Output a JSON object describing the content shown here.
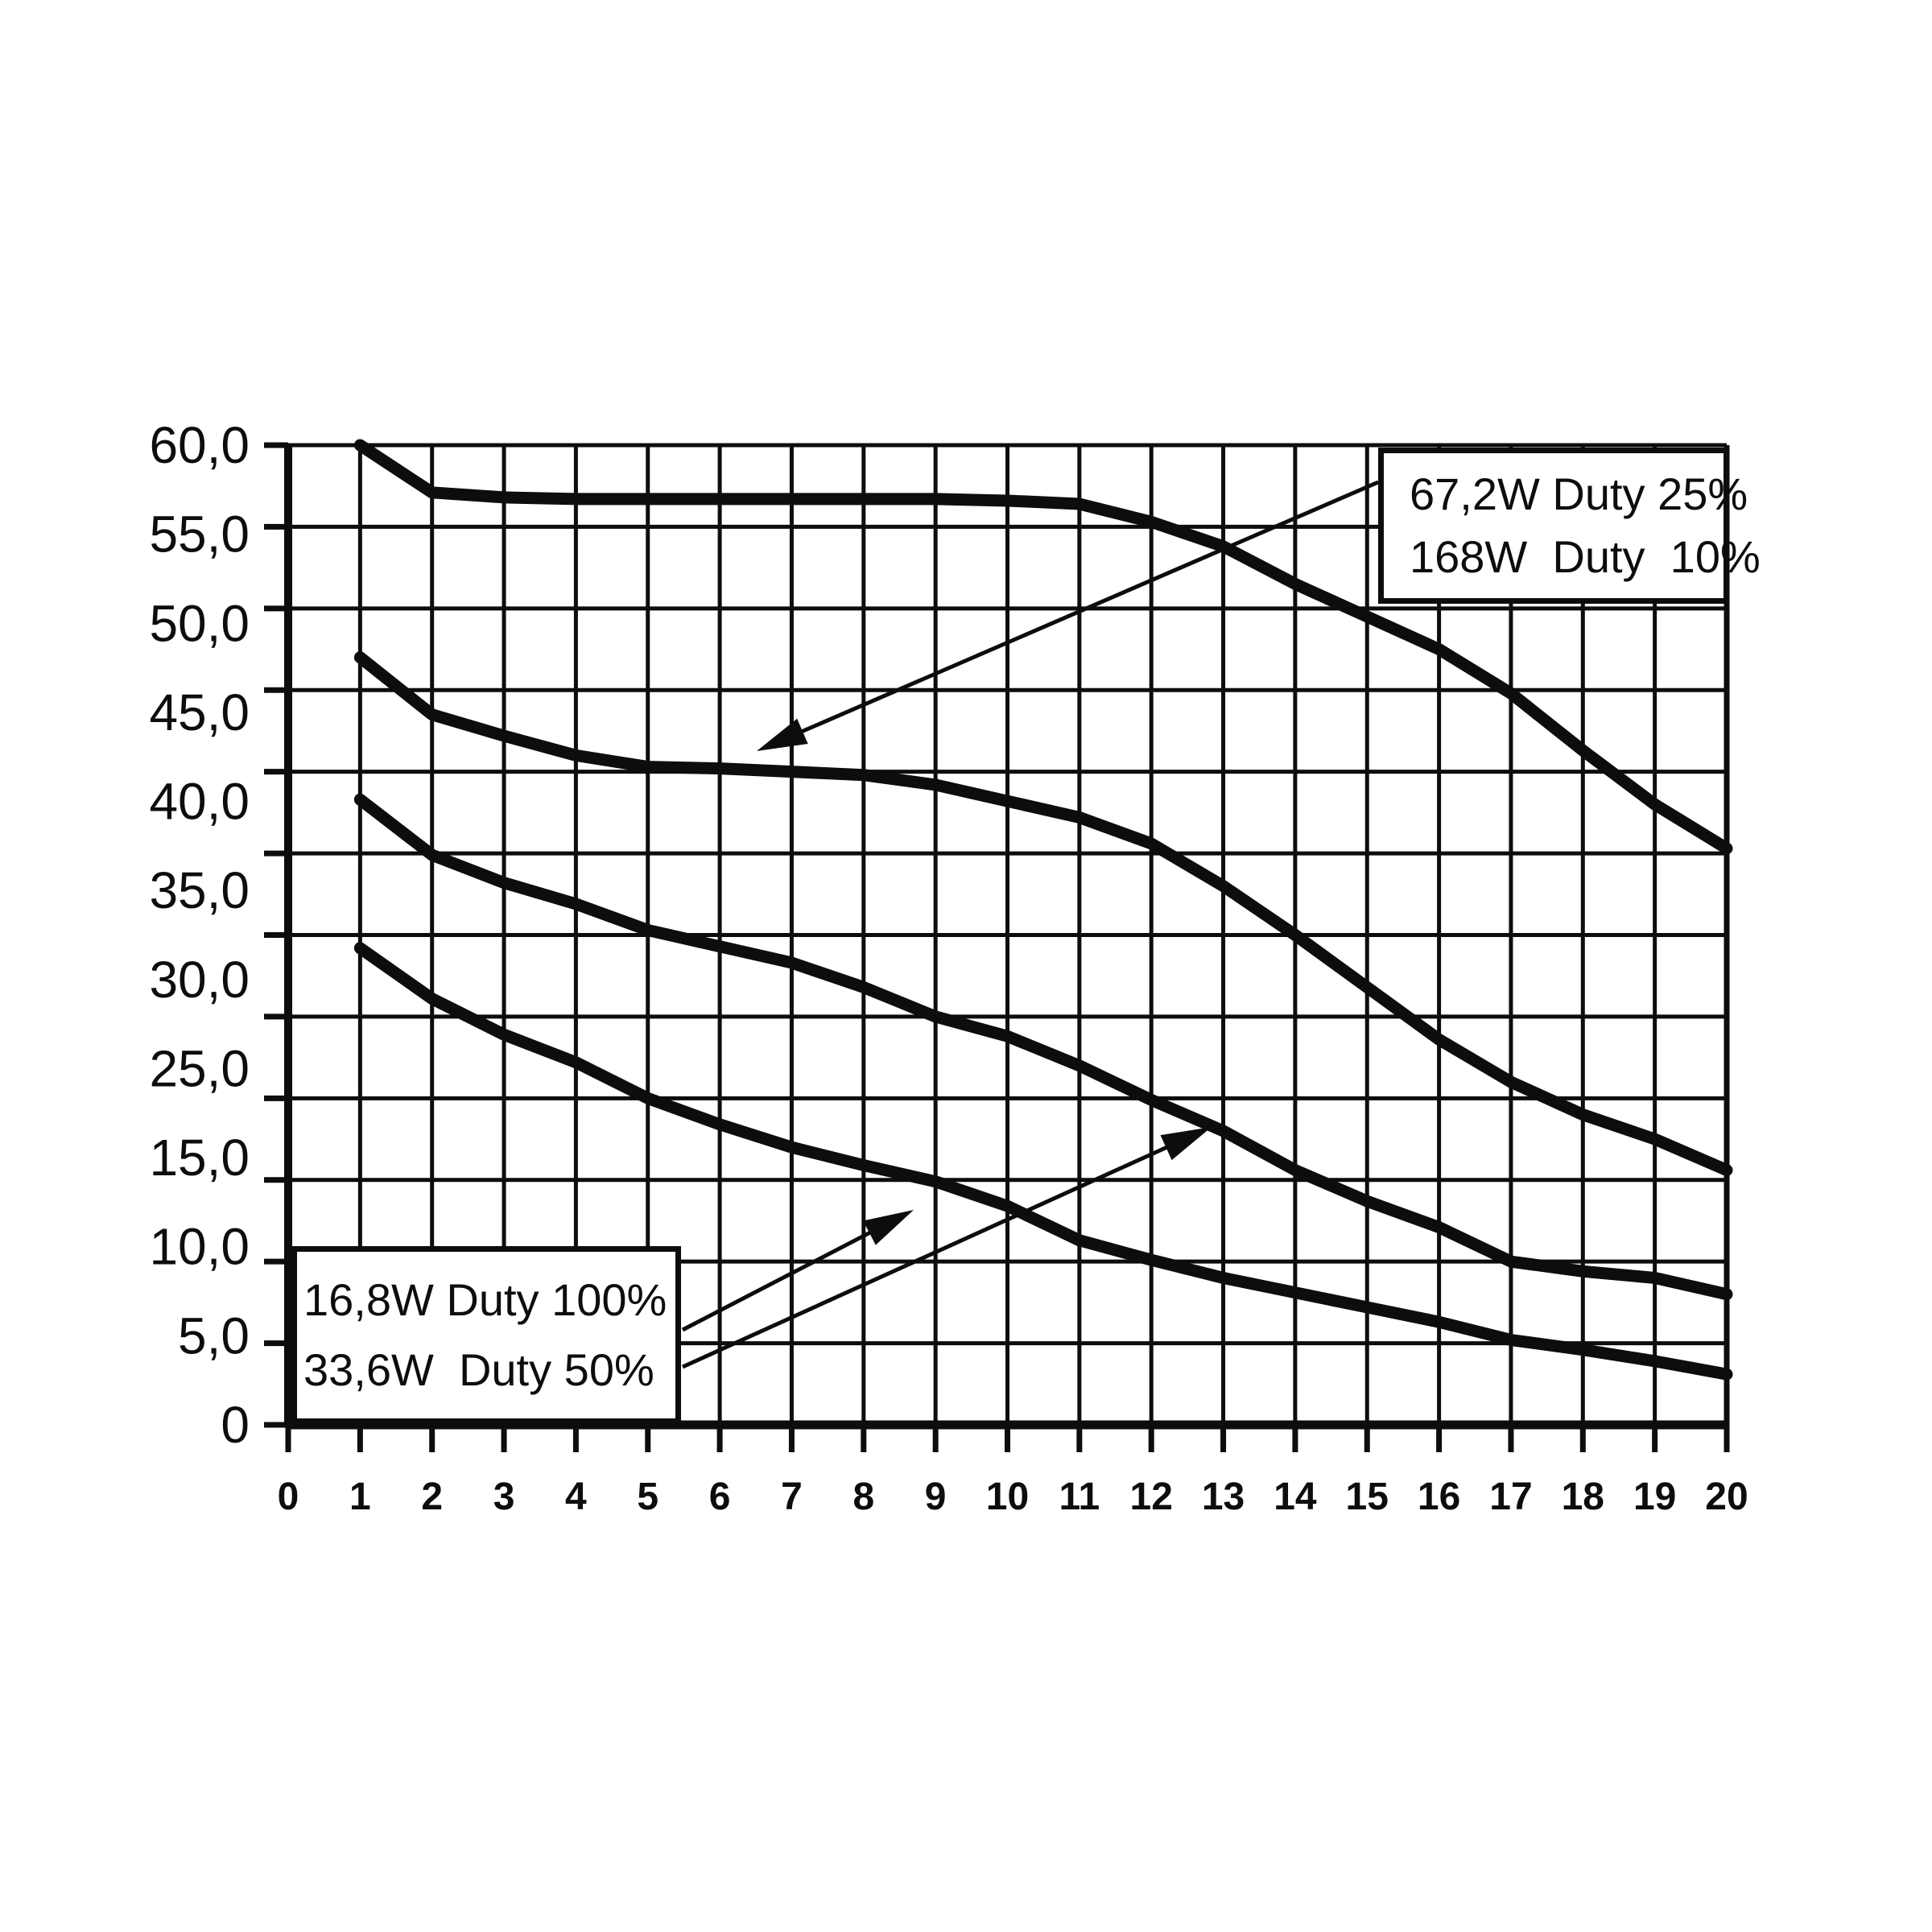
{
  "page": {
    "background": "#ffffff",
    "ink": "#0d0d0d"
  },
  "chart_data": {
    "type": "line",
    "title": "",
    "xlabel": "",
    "ylabel": "",
    "xlim": [
      0,
      20
    ],
    "ylim": [
      0,
      60
    ],
    "grid": "on",
    "line_color": "#0d0d0d",
    "x_tick_labels": [
      "0",
      "1",
      "2",
      "3",
      "4",
      "5",
      "6",
      "7",
      "8",
      "9",
      "10",
      "11",
      "12",
      "13",
      "14",
      "15",
      "16",
      "17",
      "18",
      "19",
      "20"
    ],
    "y_tick_labels": [
      "60,0",
      "55,0",
      "50,0",
      "45,0",
      "40,0",
      "35,0",
      "30,0",
      "25,0",
      "15,0",
      "10,0",
      "5,0",
      "0"
    ],
    "y_gridline_values": [
      60,
      55,
      50,
      45,
      40,
      35,
      30,
      25,
      20,
      15,
      10,
      5,
      0
    ],
    "y_unlabeled_gridline": 20,
    "decimal_separator": ",",
    "x": [
      1,
      2,
      3,
      4,
      5,
      6,
      7,
      8,
      9,
      10,
      11,
      12,
      13,
      14,
      15,
      16,
      17,
      18,
      19,
      20
    ],
    "series": [
      {
        "name": "168W  Duty  10%",
        "power": "168W",
        "duty": "10%",
        "values": [
          60,
          57.1,
          56.8,
          56.7,
          56.7,
          56.7,
          56.7,
          56.7,
          56.7,
          56.6,
          56.4,
          55.3,
          53.8,
          51.5,
          49.5,
          47.5,
          44.8,
          41.3,
          38.0,
          35.3
        ]
      },
      {
        "name": "67,2W Duty 25%",
        "power": "67,2W",
        "duty": "25%",
        "values": [
          47.0,
          43.5,
          42.2,
          41.0,
          40.3,
          40.2,
          40.0,
          39.8,
          39.2,
          38.2,
          37.2,
          35.6,
          33.0,
          30.0,
          26.8,
          23.6,
          21.0,
          19.0,
          17.5,
          15.6
        ]
      },
      {
        "name": "33,6W  Duty 50%",
        "power": "33,6W",
        "duty": "50%",
        "values": [
          38.3,
          34.9,
          33.2,
          31.9,
          30.3,
          29.3,
          28.3,
          26.8,
          25.0,
          23.8,
          22.0,
          19.9,
          18.0,
          15.6,
          13.7,
          12.1,
          10.0,
          9.4,
          9.0,
          8.0
        ]
      },
      {
        "name": "16,8W Duty 100%",
        "power": "16,8W",
        "duty": "100%",
        "values": [
          29.2,
          26.1,
          23.9,
          22.2,
          20.0,
          18.4,
          17.0,
          15.9,
          14.9,
          13.4,
          11.3,
          10.1,
          9.0,
          8.1,
          7.2,
          6.3,
          5.2,
          4.6,
          3.9,
          3.1
        ]
      }
    ]
  },
  "legend": {
    "top_right": {
      "line1": "67,2W Duty 25%",
      "line2": "168W  Duty  10%"
    },
    "bottom_left": {
      "line1": "16,8W Duty 100%",
      "line2": "33,6W  Duty 50%"
    }
  },
  "annotations": {
    "arrows": [
      {
        "points_to": "67,2W Duty 25% curve",
        "from": [
          1712,
          599
        ],
        "to": [
          940,
          933
        ]
      },
      {
        "points_to": "16,8W Duty 100% curve",
        "from": [
          848,
          1652
        ],
        "to": [
          1135,
          1503
        ]
      },
      {
        "points_to": "33,6W  Duty 50% curve",
        "from": [
          848,
          1698
        ],
        "to": [
          1505,
          1400
        ]
      }
    ]
  }
}
